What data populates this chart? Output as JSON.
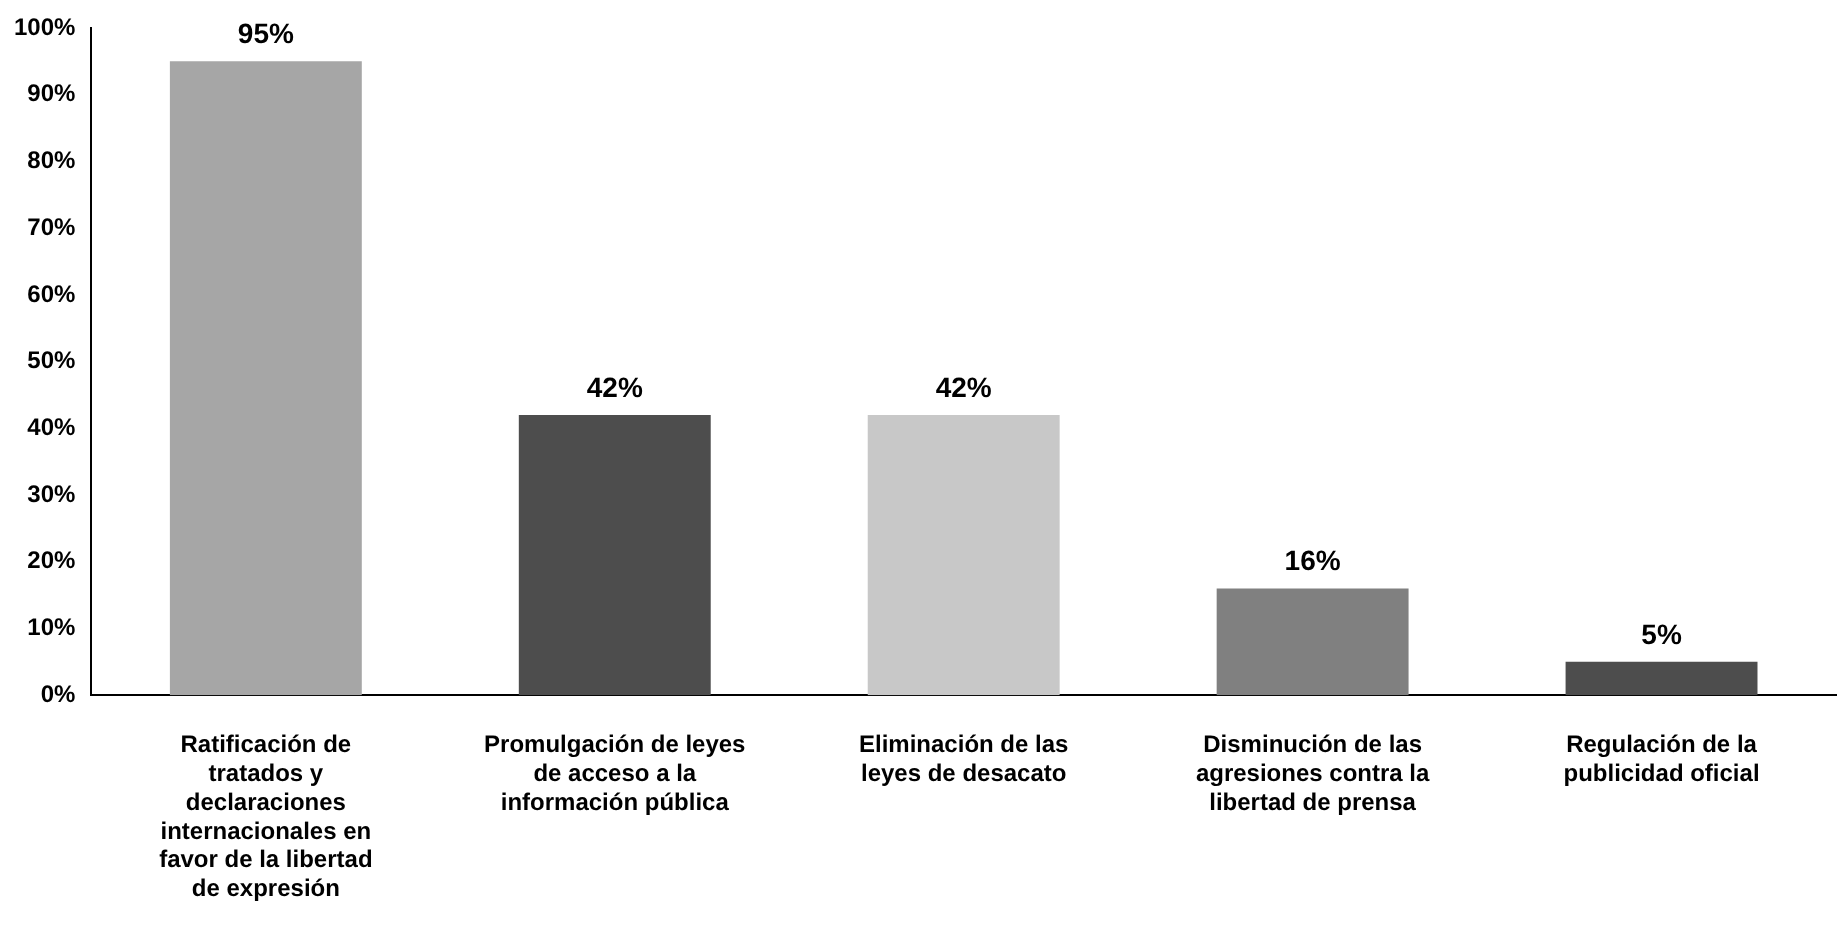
{
  "chart_data": {
    "type": "bar",
    "categories": [
      "Ratificación de tratados y declaraciones internacionales en favor de la libertad de expresión",
      "Promulgación de leyes de acceso a la información pública",
      "Eliminación de las leyes de desacato",
      "Disminución de las agresiones contra la libertad de prensa",
      "Regulación de la publicidad oficial"
    ],
    "values": [
      95,
      42,
      42,
      16,
      5
    ],
    "colors": [
      "#a6a6a6",
      "#4d4d4d",
      "#c8c8c8",
      "#808080",
      "#4d4d4d"
    ],
    "value_labels": [
      "95%",
      "42%",
      "42%",
      "16%",
      "5%"
    ],
    "ylim": [
      0,
      100
    ],
    "yticks": [
      {
        "value": 0,
        "label": "0%"
      },
      {
        "value": 10,
        "label": "10%"
      },
      {
        "value": 20,
        "label": "20%"
      },
      {
        "value": 30,
        "label": "30%"
      },
      {
        "value": 40,
        "label": "40%"
      },
      {
        "value": 50,
        "label": "50%"
      },
      {
        "value": 60,
        "label": "60%"
      },
      {
        "value": 70,
        "label": "70%"
      },
      {
        "value": 80,
        "label": "80%"
      },
      {
        "value": 90,
        "label": "90%"
      },
      {
        "value": 100,
        "label": "100%"
      }
    ],
    "grid": false,
    "legend": false
  }
}
